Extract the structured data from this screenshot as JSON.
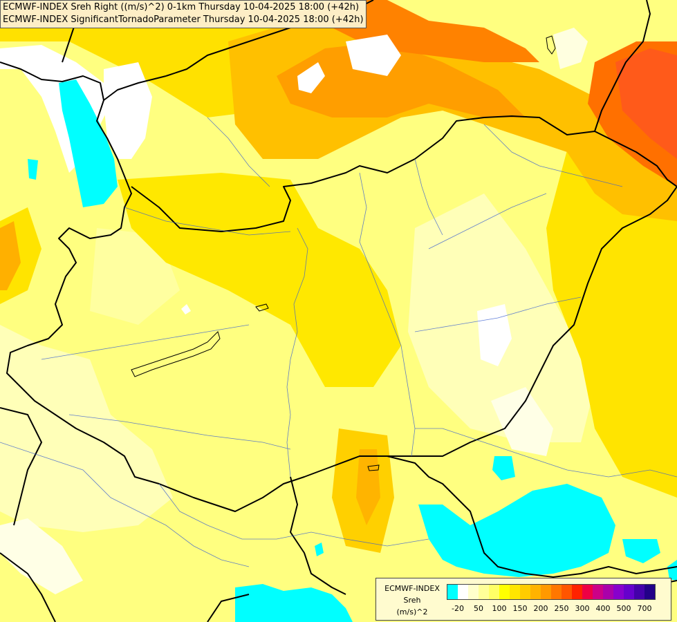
{
  "titles": {
    "line1": "ECMWF-INDEX Sreh Right ((m/s)^2) 0-1km Thursday 10-04-2025 18:00 (+42h)",
    "line2": "ECMWF-INDEX SignificantTornadoParameter Thursday 10-04-2025 18:00 (+42h)"
  },
  "legend": {
    "source": "ECMWF-INDEX",
    "parameter": "Sreh",
    "unit": "(m/s)^2",
    "colors": [
      "#00ffff",
      "#ffffff",
      "#ffffcc",
      "#ffff99",
      "#ffff66",
      "#ffff00",
      "#ffe600",
      "#ffcc00",
      "#ffb300",
      "#ff9900",
      "#ff7700",
      "#ff5500",
      "#ff2200",
      "#ee0044",
      "#cc0088",
      "#aa00aa",
      "#8800cc",
      "#6600cc",
      "#4400aa",
      "#220088"
    ],
    "ticks": [
      "-20",
      "50",
      "100",
      "150",
      "200",
      "250",
      "300",
      "400",
      "500",
      "700"
    ]
  }
}
